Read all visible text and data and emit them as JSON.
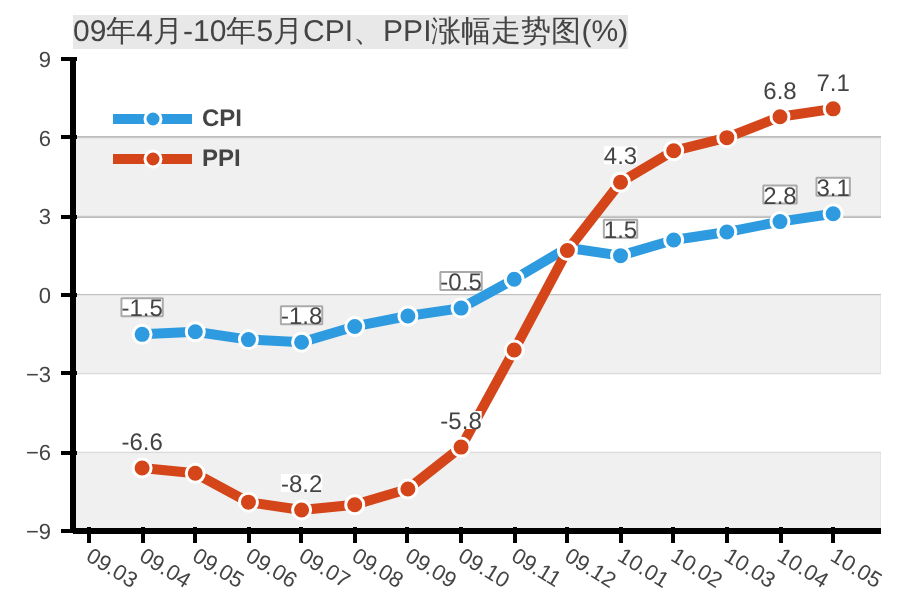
{
  "chart_data": {
    "type": "line",
    "title": "09年4月-10年5月CPI、PPI涨幅走势图(%)",
    "categories": [
      "09.03",
      "09.04",
      "09.05",
      "09.06",
      "09.07",
      "09.08",
      "09.09",
      "09.10",
      "09.11",
      "09.12",
      "10.01",
      "10.02",
      "10.03",
      "10.04",
      "10.05"
    ],
    "series": [
      {
        "name": "CPI",
        "color": "#2e9be0",
        "values": [
          null,
          -1.5,
          -1.4,
          -1.7,
          -1.8,
          -1.2,
          -0.8,
          -0.5,
          0.6,
          1.8,
          1.5,
          2.1,
          2.4,
          2.8,
          3.1
        ],
        "value_labels": [
          null,
          "-1.5",
          null,
          null,
          "-1.8",
          null,
          null,
          "-0.5",
          null,
          null,
          "1.5",
          null,
          null,
          "2.8",
          "3.1"
        ]
      },
      {
        "name": "PPI",
        "color": "#d4461a",
        "values": [
          null,
          -6.6,
          -6.8,
          -7.9,
          -8.2,
          -8.0,
          -7.4,
          -5.8,
          -2.1,
          1.7,
          4.3,
          5.5,
          6.0,
          6.8,
          7.1
        ],
        "value_labels": [
          null,
          "-6.6",
          null,
          null,
          "-8.2",
          null,
          null,
          "-5.8",
          null,
          null,
          "4.3",
          null,
          null,
          "6.8",
          "7.1"
        ]
      }
    ],
    "ylim": [
      -9,
      9
    ],
    "yticks": [
      -9,
      -6,
      -3,
      0,
      3,
      6,
      9
    ],
    "grid": "y",
    "legend": "top left",
    "marker": "circle",
    "line_style": "solid",
    "bands": [
      {
        "axis": "y",
        "from": 3,
        "to": 6,
        "color": "#f0f0f0"
      },
      {
        "axis": "y",
        "from": -3,
        "to": 0,
        "color": "#f0f0f0"
      },
      {
        "axis": "y",
        "from": -9,
        "to": -6,
        "color": "#f0f0f0"
      }
    ]
  }
}
